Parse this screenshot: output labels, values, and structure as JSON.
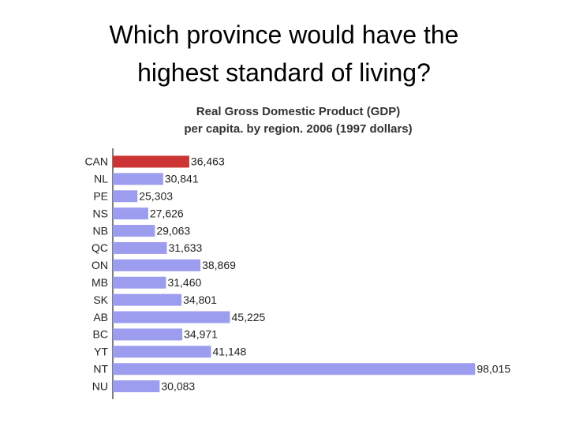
{
  "heading": [
    "Which province would have the",
    "highest standard of living?"
  ],
  "chart_data": {
    "type": "barh",
    "title": "Real Gross Domestic Product (GDP)",
    "subtitle": "per capita. by region. 2006 (1997 dollars)",
    "categories": [
      "CAN",
      "NL",
      "PE",
      "NS",
      "NB",
      "QC",
      "ON",
      "MB",
      "SK",
      "AB",
      "BC",
      "YT",
      "NT",
      "NU"
    ],
    "values": [
      36463,
      30841,
      25303,
      27626,
      29063,
      31633,
      38869,
      31460,
      34801,
      45225,
      34971,
      41148,
      98015,
      30083
    ],
    "value_labels": [
      "36,463",
      "30,841",
      "25,303",
      "27,626",
      "29,063",
      "31,633",
      "38,869",
      "31,460",
      "34,801",
      "45,225",
      "34,971",
      "41,148",
      "98,015",
      "30,083"
    ],
    "colors": [
      "#cc3333",
      "#9d9df0",
      "#9d9df0",
      "#9d9df0",
      "#9d9df0",
      "#9d9df0",
      "#9d9df0",
      "#9d9df0",
      "#9d9df0",
      "#9d9df0",
      "#9d9df0",
      "#9d9df0",
      "#9d9df0",
      "#9d9df0"
    ],
    "xlim": [
      20000,
      100000
    ]
  }
}
